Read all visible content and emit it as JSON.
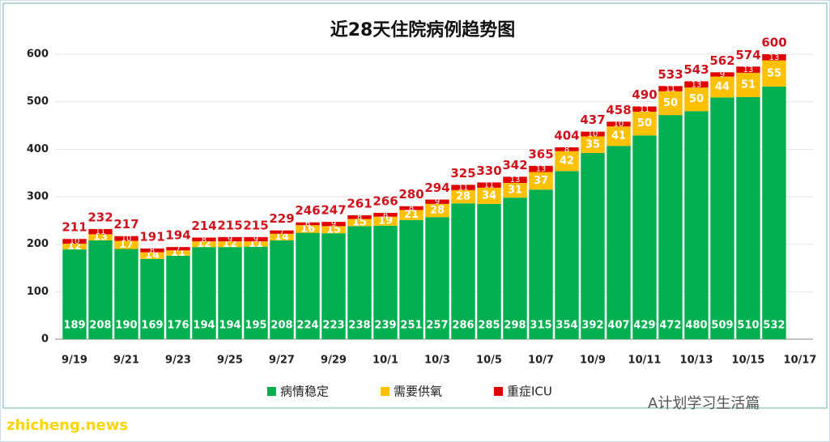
{
  "chart_data": {
    "type": "stacked-bar",
    "title": "近28天住院病例趋势图",
    "categories": [
      "9/19",
      null,
      "9/21",
      null,
      "9/23",
      null,
      "9/25",
      null,
      "9/27",
      null,
      "9/29",
      null,
      "10/1",
      null,
      "10/3",
      null,
      "10/5",
      null,
      "10/7",
      null,
      "10/9",
      null,
      "10/11",
      null,
      "10/13",
      null,
      "10/15",
      null,
      "10/17"
    ],
    "series": [
      {
        "name": "病情稳定",
        "color": "#00b050",
        "values": [
          189,
          208,
          190,
          169,
          176,
          194,
          194,
          195,
          208,
          224,
          223,
          238,
          239,
          251,
          257,
          286,
          285,
          298,
          315,
          354,
          392,
          407,
          429,
          472,
          480,
          509,
          510,
          532,
          null
        ]
      },
      {
        "name": "需要供氧",
        "color": "#ffc000",
        "values": [
          12,
          13,
          17,
          14,
          11,
          12,
          12,
          11,
          14,
          16,
          15,
          15,
          19,
          21,
          28,
          28,
          34,
          31,
          37,
          42,
          35,
          41,
          50,
          50,
          50,
          44,
          51,
          55,
          null
        ]
      },
      {
        "name": "重症ICU",
        "color": "#e00000",
        "values": [
          10,
          11,
          10,
          8,
          7,
          8,
          9,
          9,
          7,
          6,
          9,
          8,
          8,
          8,
          9,
          11,
          11,
          13,
          13,
          8,
          10,
          10,
          11,
          11,
          13,
          9,
          13,
          13,
          null
        ]
      }
    ],
    "totals": [
      211,
      232,
      217,
      191,
      194,
      214,
      215,
      215,
      229,
      246,
      247,
      261,
      266,
      280,
      294,
      325,
      330,
      342,
      365,
      404,
      437,
      458,
      490,
      533,
      543,
      562,
      574,
      600,
      null
    ],
    "ylim": [
      0,
      600
    ],
    "yticks": [
      0,
      100,
      200,
      300,
      400,
      500,
      600
    ],
    "grid": true,
    "legend": "bottom",
    "watermarks": [
      "zhicheng.news",
      "A计划学习生活篇"
    ]
  }
}
